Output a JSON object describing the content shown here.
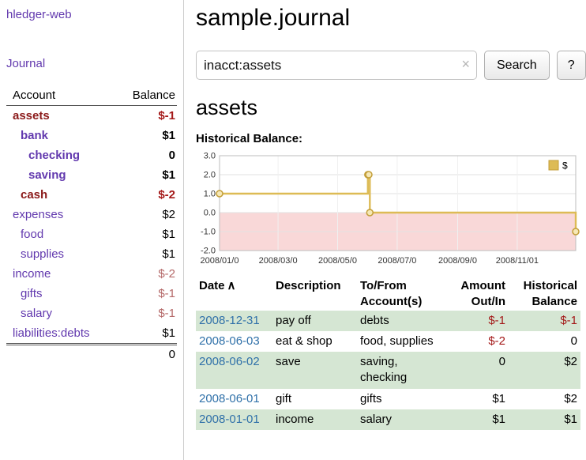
{
  "app": {
    "title": "hledger-web"
  },
  "sidebar": {
    "journal_link": "Journal",
    "accounts_header": {
      "account": "Account",
      "balance": "Balance"
    },
    "accounts": [
      {
        "name": "assets",
        "balance": "$-1",
        "indent": 1,
        "bold": true,
        "name_neg": true,
        "neg": true
      },
      {
        "name": "bank",
        "balance": "$1",
        "indent": 2,
        "bold": true
      },
      {
        "name": "checking",
        "balance": "0",
        "indent": 3,
        "bold": true
      },
      {
        "name": "saving",
        "balance": "$1",
        "indent": 3,
        "bold": true
      },
      {
        "name": "cash",
        "balance": "$-2",
        "indent": 2,
        "bold": true,
        "name_neg": true,
        "neg": true
      },
      {
        "name": "expenses",
        "balance": "$2",
        "indent": 1
      },
      {
        "name": "food",
        "balance": "$1",
        "indent": 2
      },
      {
        "name": "supplies",
        "balance": "$1",
        "indent": 2
      },
      {
        "name": "income",
        "balance": "$-2",
        "indent": 1,
        "neg": true
      },
      {
        "name": "gifts",
        "balance": "$-1",
        "indent": 2,
        "neg": true
      },
      {
        "name": "salary",
        "balance": "$-1",
        "indent": 2,
        "neg": true
      },
      {
        "name": "liabilities:debts",
        "balance": "$1",
        "indent": 1
      }
    ],
    "total_balance": "0"
  },
  "main": {
    "title": "sample.journal",
    "search": {
      "value": "inacct:assets",
      "clear_icon": "×",
      "search_button": "Search",
      "help_button": "?"
    },
    "section_title": "assets",
    "chart_label": "Historical Balance:"
  },
  "chart_data": {
    "type": "line",
    "title": "Historical Balance",
    "x_range": [
      "2008-01-01",
      "2008-12-31"
    ],
    "ylim": [
      -2,
      3
    ],
    "yticks": [
      3,
      2,
      1,
      0,
      -1,
      -2
    ],
    "xticks": [
      {
        "date": "2008-01-01",
        "label": "2008/01/0"
      },
      {
        "date": "2008-03-01",
        "label": "2008/03/0"
      },
      {
        "date": "2008-05-01",
        "label": "2008/05/0"
      },
      {
        "date": "2008-07-01",
        "label": "2008/07/0"
      },
      {
        "date": "2008-09-01",
        "label": "2008/09/0"
      },
      {
        "date": "2008-11-01",
        "label": "2008/11/01"
      }
    ],
    "legend_position": "top-right",
    "grid": true,
    "negative_region_color": "#f9d8d8",
    "series": [
      {
        "name": "$",
        "step": true,
        "color": "#ddbb55",
        "marker_stroke": "#c39e38",
        "marker_fill": "#f6e8b6",
        "points": [
          [
            "2008-01-01",
            1
          ],
          [
            "2008-06-01",
            2
          ],
          [
            "2008-06-02",
            2
          ],
          [
            "2008-06-03",
            0
          ],
          [
            "2008-12-31",
            -1
          ]
        ]
      }
    ]
  },
  "register": {
    "headers": {
      "date": "Date",
      "sort_icon": "∧",
      "description": "Description",
      "accounts": "To/From Account(s)",
      "amount": "Amount Out/In",
      "balance": "Historical Balance"
    },
    "rows": [
      {
        "date": "2008-12-31",
        "description": "pay off",
        "accounts": "debts",
        "amount": "$-1",
        "balance": "$-1",
        "amount_neg": true,
        "balance_neg": true
      },
      {
        "date": "2008-06-03",
        "description": "eat & shop",
        "accounts": "food, supplies",
        "amount": "$-2",
        "balance": "0",
        "amount_neg": true
      },
      {
        "date": "2008-06-02",
        "description": "save",
        "accounts": "saving, checking",
        "amount": "0",
        "balance": "$2"
      },
      {
        "date": "2008-06-01",
        "description": "gift",
        "accounts": "gifts",
        "amount": "$1",
        "balance": "$2"
      },
      {
        "date": "2008-01-01",
        "description": "income",
        "accounts": "salary",
        "amount": "$1",
        "balance": "$1"
      }
    ]
  },
  "colors": {
    "accent-purple": "#6239ae",
    "dark-red": "#8b1a1a",
    "neg-red": "#a41919",
    "soft-red": "#b46868",
    "link-blue": "#3071a9",
    "row-green": "#d5e6d3",
    "chart-gold": "#ddbb55",
    "chart-pink": "#f9d8d8"
  }
}
